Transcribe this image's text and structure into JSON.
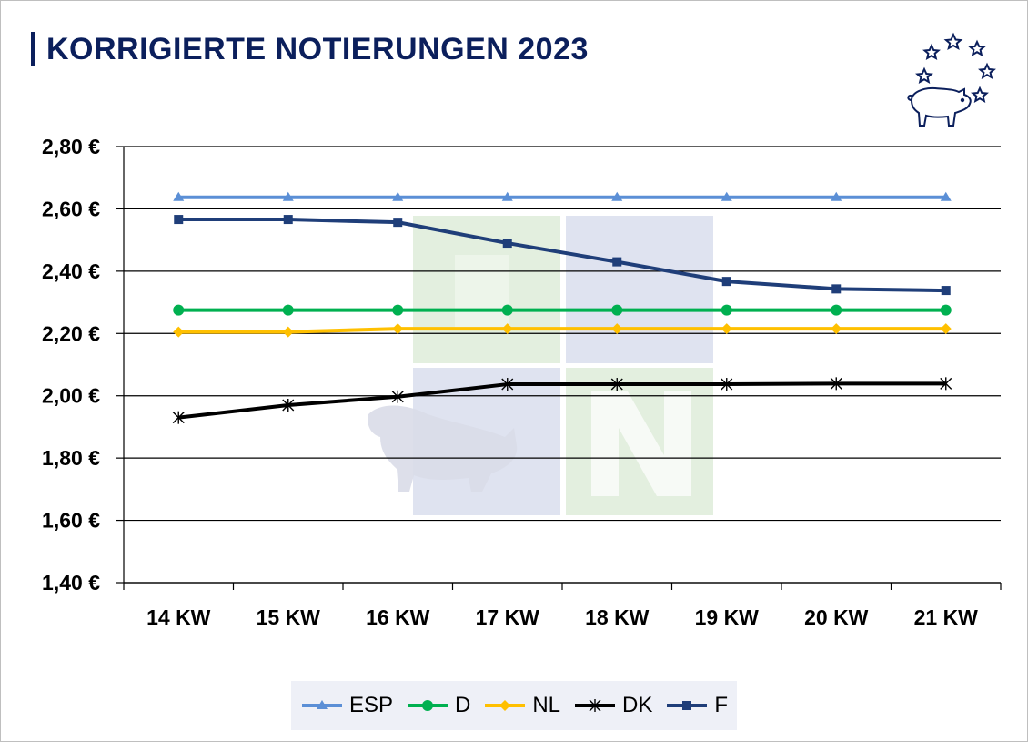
{
  "header": {
    "title": "KORRIGIERTE NOTIERUNGEN 2023"
  },
  "logo": {
    "icon": "pig-stars-logo-icon",
    "color": "#0b1f5c"
  },
  "chart_data": {
    "type": "line",
    "title": "KORRIGIERTE NOTIERUNGEN 2023",
    "categories": [
      "14 KW",
      "15 KW",
      "16 KW",
      "17 KW",
      "18 KW",
      "19 KW",
      "20 KW",
      "21 KW"
    ],
    "y_tick_values": [
      1.4,
      1.6,
      1.8,
      2.0,
      2.2,
      2.4,
      2.6,
      2.8
    ],
    "y_tick_labels": [
      "1,40 €",
      "1,60 €",
      "1,80 €",
      "2,00 €",
      "2,20 €",
      "2,40 €",
      "2,60 €",
      "2,80 €"
    ],
    "ylim": [
      1.4,
      2.8
    ],
    "grid": true,
    "legend_position": "bottom",
    "series": [
      {
        "name": "ESP",
        "color": "#5b8fd6",
        "marker": "triangle",
        "values": [
          2.637,
          2.637,
          2.637,
          2.637,
          2.637,
          2.637,
          2.637,
          2.637
        ]
      },
      {
        "name": "D",
        "color": "#00b050",
        "marker": "circle",
        "values": [
          2.275,
          2.275,
          2.275,
          2.275,
          2.275,
          2.275,
          2.275,
          2.275
        ]
      },
      {
        "name": "NL",
        "color": "#ffc000",
        "marker": "diamond",
        "values": [
          2.205,
          2.205,
          2.215,
          2.215,
          2.215,
          2.215,
          2.215,
          2.215
        ]
      },
      {
        "name": "DK",
        "color": "#000000",
        "marker": "star",
        "values": [
          1.93,
          1.97,
          1.997,
          2.037,
          2.037,
          2.037,
          2.039,
          2.039
        ]
      },
      {
        "name": "F",
        "color": "#1f3e79",
        "marker": "square",
        "values": [
          2.566,
          2.566,
          2.557,
          2.49,
          2.43,
          2.367,
          2.343,
          2.338
        ]
      }
    ]
  }
}
